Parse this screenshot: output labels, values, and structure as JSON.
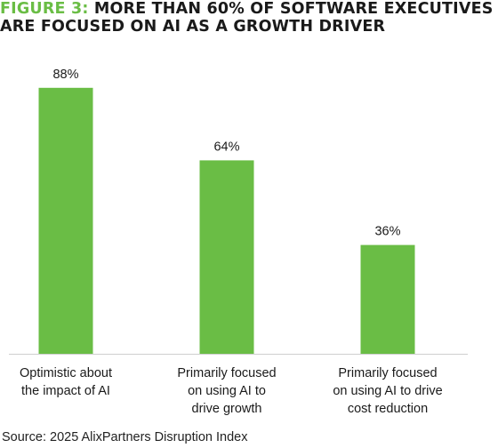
{
  "title": {
    "figure_label": "FIGURE 3:",
    "line1": "MORE THAN 60% OF SOFTWARE EXECUTIVES",
    "line2": "ARE FOCUSED ON AI AS A GROWTH DRIVER"
  },
  "source": "Source: 2025 AlixPartners Disruption Index",
  "colors": {
    "bar": "#6abd45",
    "accent": "#6abd45",
    "axis": "#cfcfcf",
    "text": "#1a1a1a"
  },
  "chart_data": {
    "type": "bar",
    "categories": [
      [
        "Optimistic about",
        "the impact of AI"
      ],
      [
        "Primarily focused",
        "on using AI to",
        "drive growth"
      ],
      [
        "Primarily focused",
        "on using AI to drive",
        "cost reduction"
      ]
    ],
    "values": [
      88,
      64,
      36
    ],
    "value_labels": [
      "88%",
      "64%",
      "36%"
    ],
    "ylim": [
      0,
      100
    ],
    "grid": false,
    "legend": "none"
  }
}
